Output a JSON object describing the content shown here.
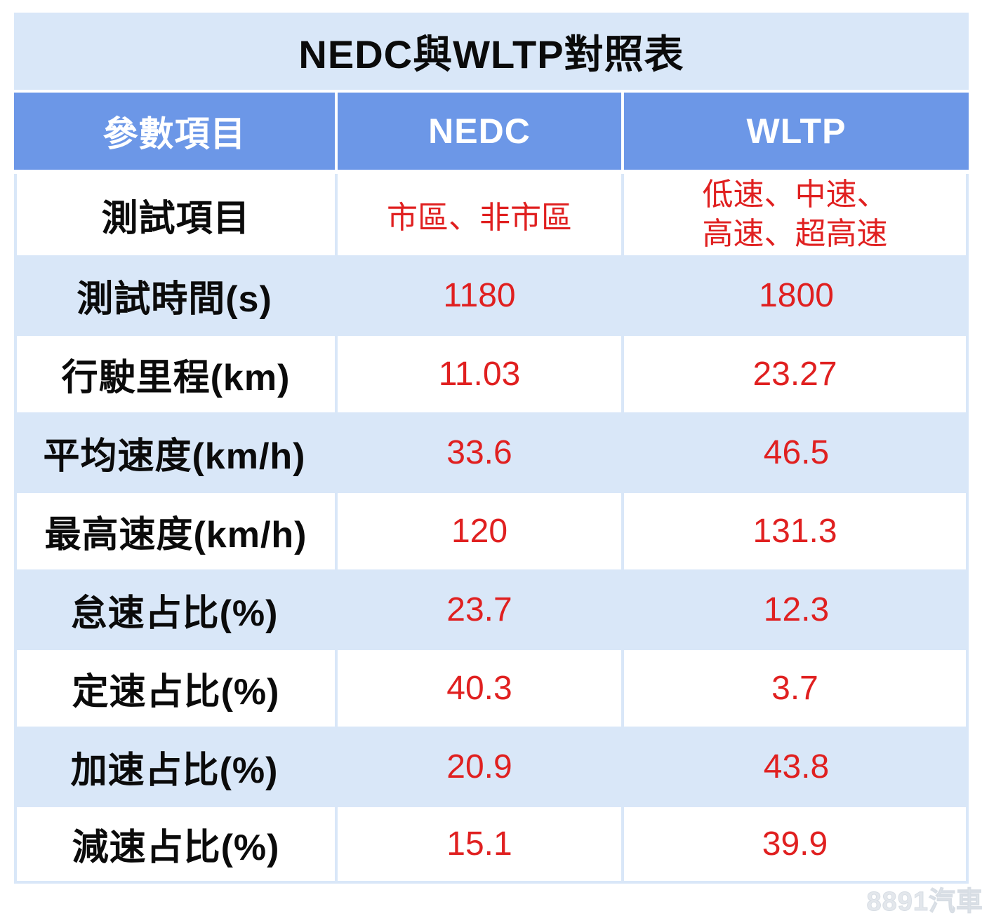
{
  "chart_data": {
    "type": "table",
    "title": "NEDC與WLTP對照表",
    "columns": [
      "參數項目",
      "NEDC",
      "WLTP"
    ],
    "rows": [
      [
        "測試項目",
        "市區、非市區",
        "低速、中速、高速、超高速"
      ],
      [
        "測試時間(s)",
        "1180",
        "1800"
      ],
      [
        "行駛里程(km)",
        "11.03",
        "23.27"
      ],
      [
        "平均速度(km/h)",
        "33.6",
        "46.5"
      ],
      [
        "最高速度(km/h)",
        "120",
        "131.3"
      ],
      [
        "怠速占比(%)",
        "23.7",
        "12.3"
      ],
      [
        "定速占比(%)",
        "40.3",
        "3.7"
      ],
      [
        "加速占比(%)",
        "20.9",
        "43.8"
      ],
      [
        "減速占比(%)",
        "15.1",
        "39.9"
      ]
    ],
    "layout": {
      "header_bg": "#6C97E7",
      "stripe_bg": "#D9E7F8",
      "value_color": "#E02020",
      "label_color": "#0b0b0b",
      "header_text_color": "#ffffff"
    }
  },
  "display": {
    "wltp_test_lines": [
      "低速、中速、",
      "高速、超高速"
    ]
  },
  "watermark": {
    "text": "8891汽車"
  }
}
